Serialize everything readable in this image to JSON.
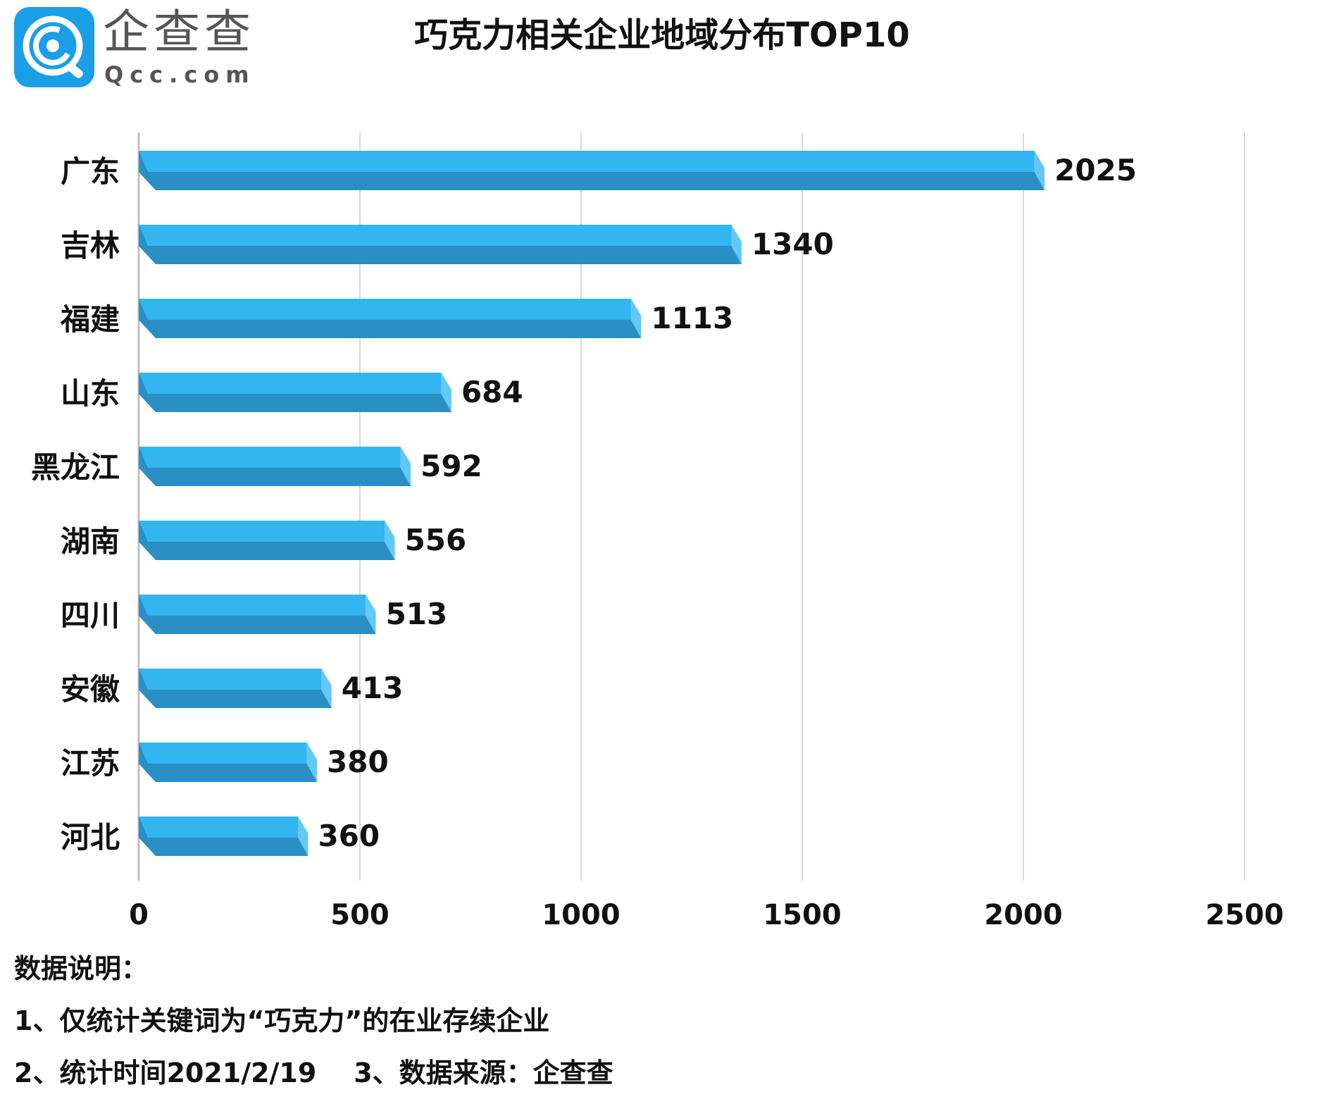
{
  "brand": {
    "name_cn": "企查查",
    "name_en": "Qcc.com",
    "logo_icon": "qcc-logo-icon",
    "colors": {
      "logo": "#1a9ee6",
      "logo_dark": "#1376c8"
    }
  },
  "colors": {
    "bar_top": "#33b5ef",
    "bar_front": "#2a8fc4",
    "bar_end": "#62c9f4",
    "grid": "#d9d9d9",
    "axis": "#bfbfbf"
  },
  "chart_data": {
    "type": "bar",
    "orientation": "horizontal",
    "title": "巧克力相关企业地域分布TOP10",
    "categories": [
      "广东",
      "吉林",
      "福建",
      "山东",
      "黑龙江",
      "湖南",
      "四川",
      "安徽",
      "江苏",
      "河北"
    ],
    "values": [
      2025,
      1340,
      1113,
      684,
      592,
      556,
      513,
      413,
      380,
      360
    ],
    "value_labels": [
      "2025",
      "1340",
      "1113",
      "684",
      "592",
      "556",
      "513",
      "413",
      "380",
      "360"
    ],
    "xlim": [
      0,
      2500
    ],
    "xticks": [
      0,
      500,
      1000,
      1500,
      2000,
      2500
    ],
    "xtick_labels": [
      "0",
      "500",
      "1000",
      "1500",
      "2000",
      "2500"
    ],
    "xlabel": "",
    "ylabel": "",
    "grid": true,
    "legend": "none"
  },
  "notes": {
    "heading": "数据说明：",
    "line1": "1、仅统计关键词为“巧克力”的在业存续企业",
    "line2": "2、统计时间2021/2/19    3、数据来源：企查查"
  }
}
